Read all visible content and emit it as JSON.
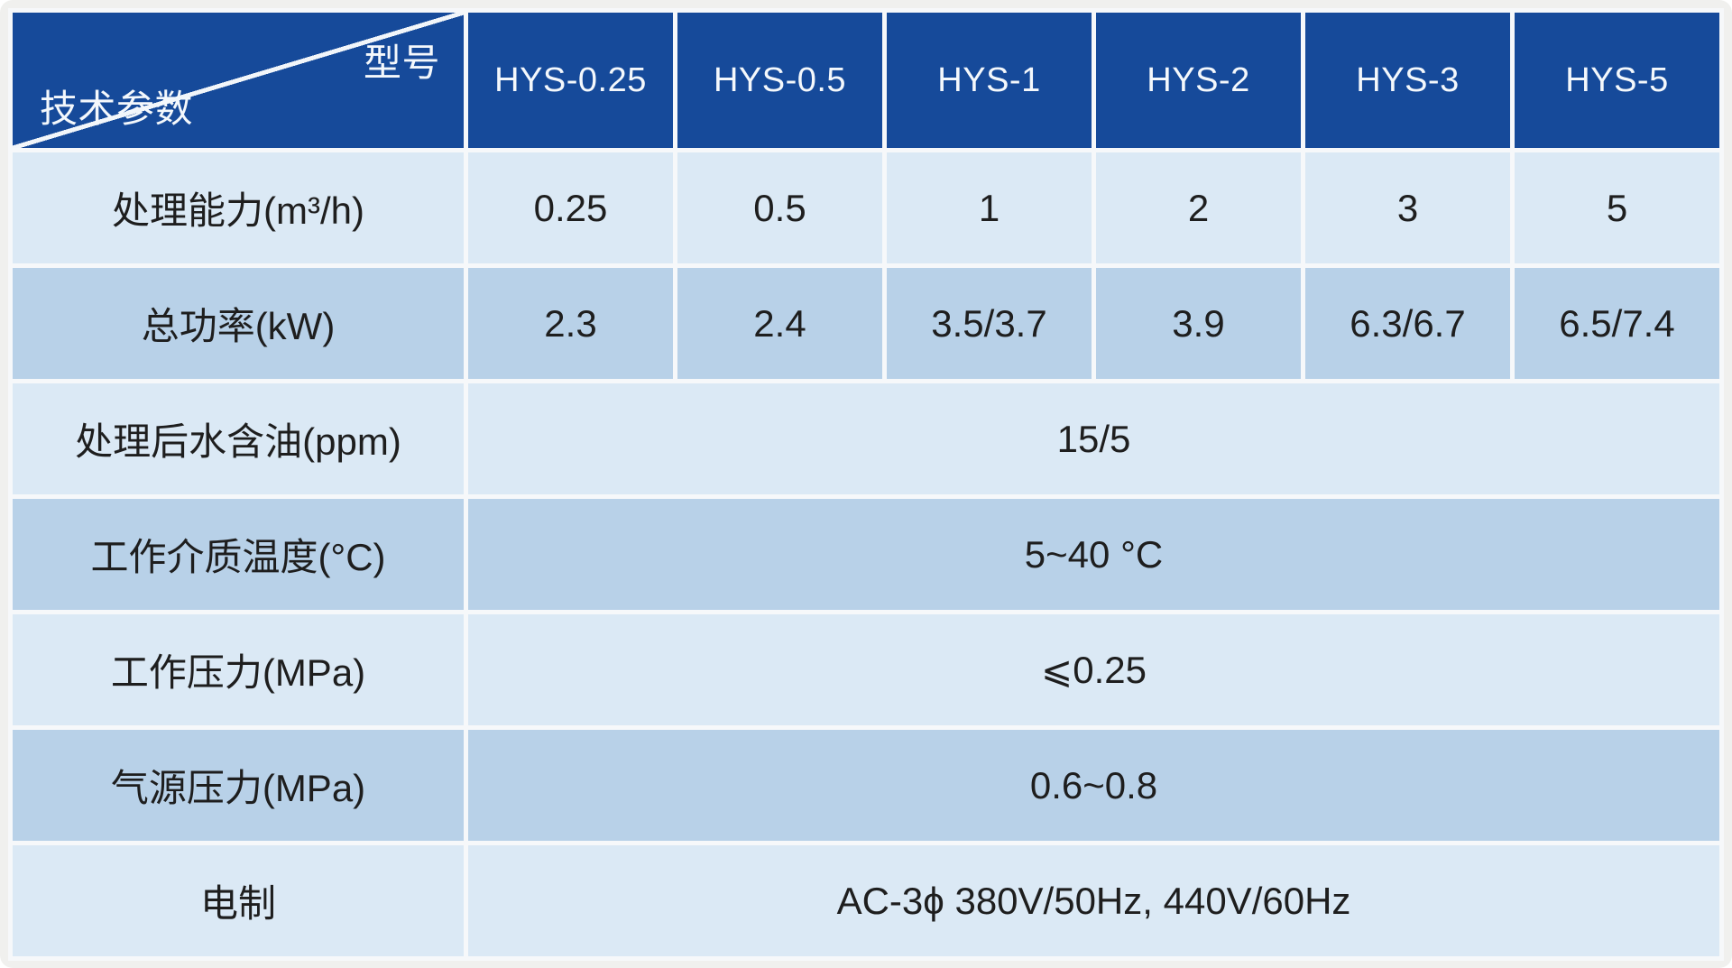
{
  "table": {
    "corner": {
      "top_right": "型号",
      "bottom_left": "技术参数"
    },
    "columns": [
      "HYS-0.25",
      "HYS-0.5",
      "HYS-1",
      "HYS-2",
      "HYS-3",
      "HYS-5"
    ],
    "rows": [
      {
        "label": "处理能力(m³/h)",
        "values": [
          "0.25",
          "0.5",
          "1",
          "2",
          "3",
          "5"
        ]
      },
      {
        "label": "总功率(kW)",
        "values": [
          "2.3",
          "2.4",
          "3.5/3.7",
          "3.9",
          "6.3/6.7",
          "6.5/7.4"
        ]
      },
      {
        "label": "处理后水含油(ppm)",
        "merged": "15/5"
      },
      {
        "label": "工作介质温度(°C)",
        "merged": "5~40 °C"
      },
      {
        "label": "工作压力(MPa)",
        "merged": "⩽0.25"
      },
      {
        "label": "气源压力(MPa)",
        "merged": "0.6~0.8"
      },
      {
        "label": "电制",
        "merged": "AC-3ϕ 380V/50Hz, 440V/60Hz"
      }
    ],
    "colors": {
      "header_bg": "#164a9a",
      "header_text": "#f4f8fc",
      "row_light": "#dbe9f5",
      "row_dark": "#b8d1e8",
      "grid_gap": "#f6f8fa",
      "frame": "#f0f0ee",
      "body_text": "#1e1e1e"
    }
  }
}
